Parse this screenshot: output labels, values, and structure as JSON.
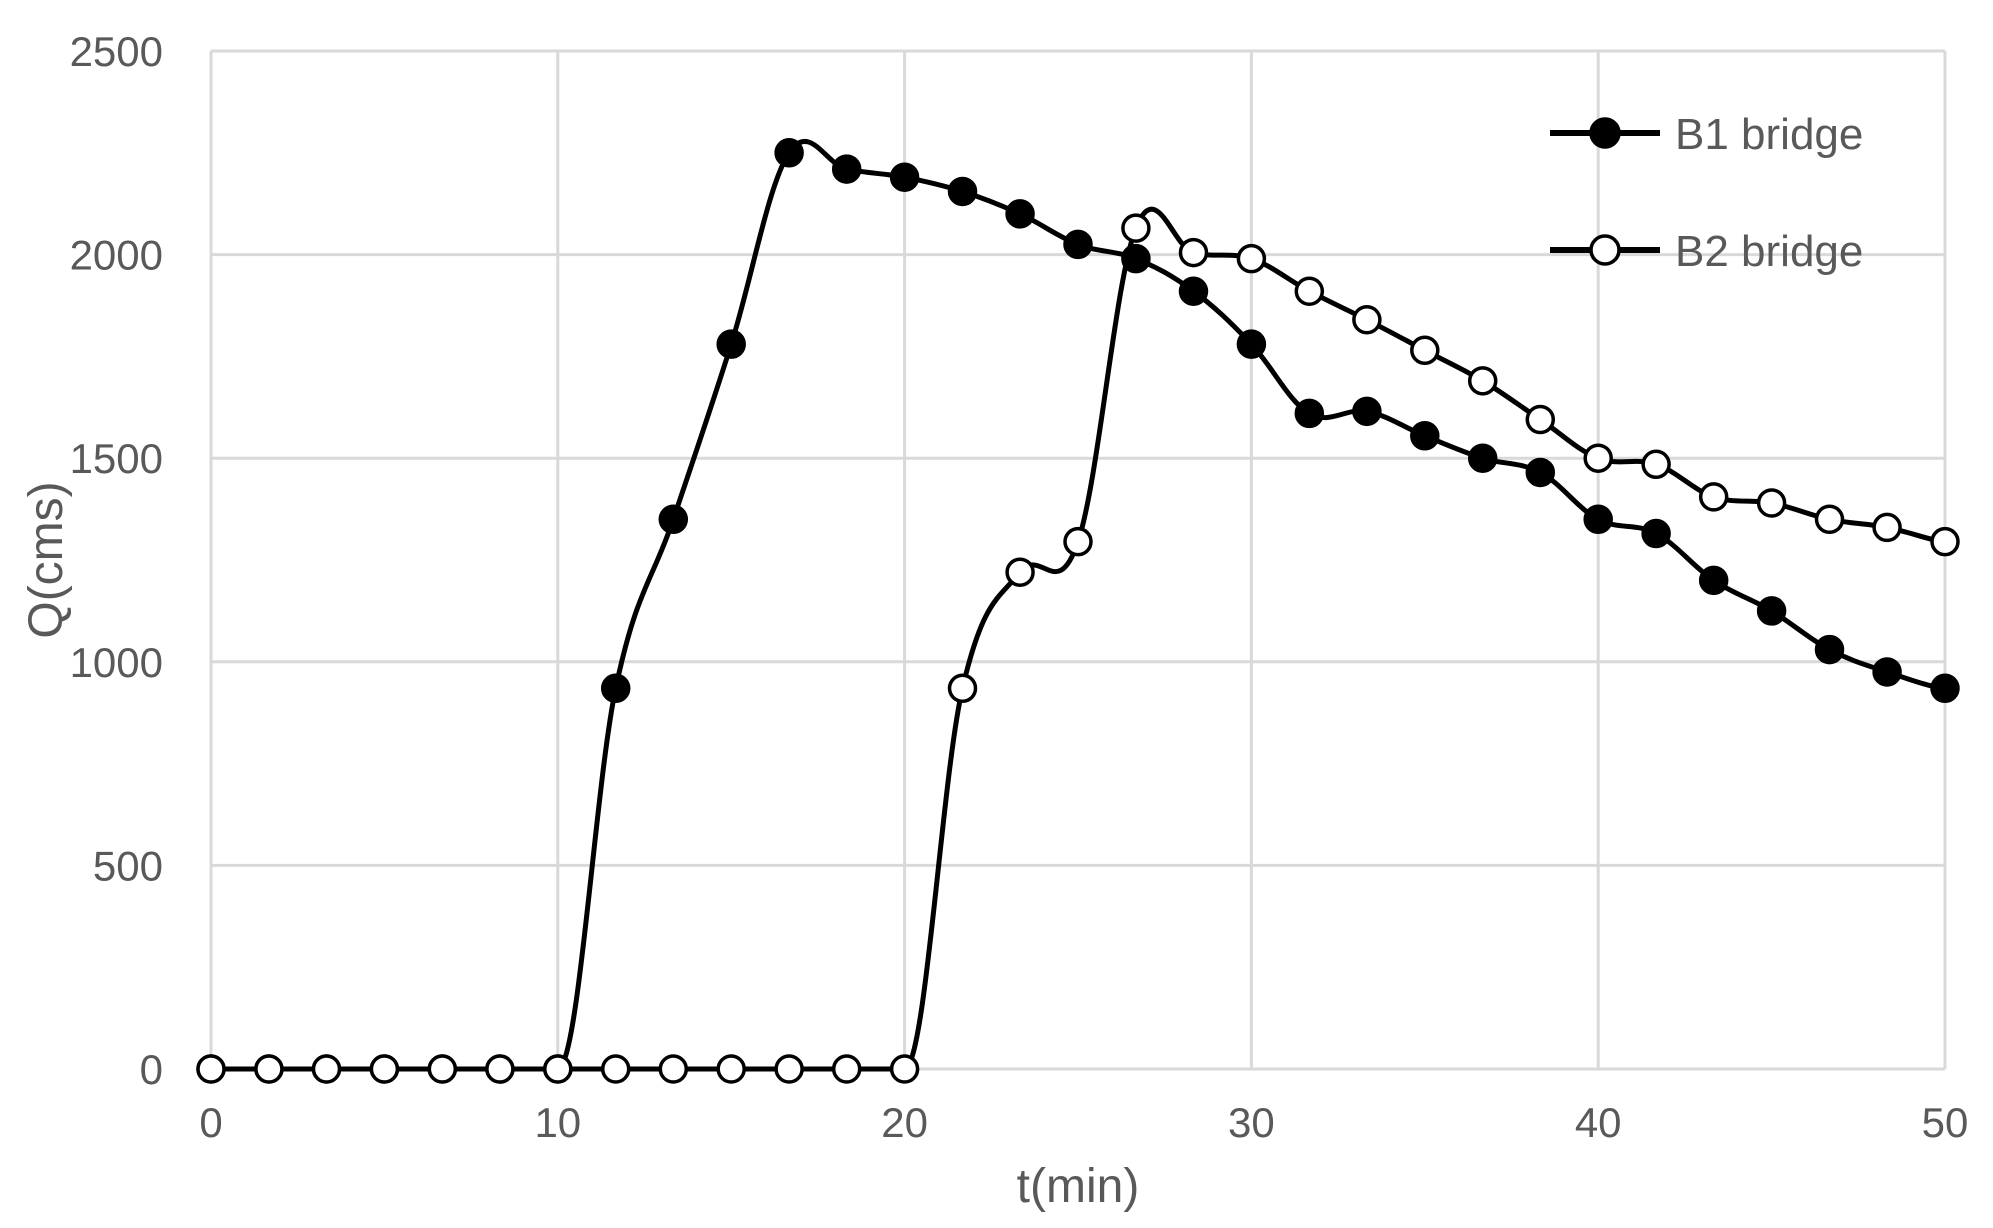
{
  "chart_data": {
    "type": "line",
    "xlabel": "t(min)",
    "ylabel": "Q(cms)",
    "xlim": [
      0,
      50
    ],
    "ylim": [
      0,
      2500
    ],
    "xticks": [
      0,
      10,
      20,
      30,
      40,
      50
    ],
    "yticks": [
      0,
      500,
      1000,
      1500,
      2000,
      2500
    ],
    "grid": true,
    "legend_position": "top-right",
    "series": [
      {
        "name": "B1 bridge",
        "marker": "filled-circle",
        "color": "#000000",
        "x": [
          0,
          1.67,
          3.33,
          5,
          6.67,
          8.33,
          10,
          11.67,
          13.33,
          15,
          16.67,
          18.33,
          20,
          21.67,
          23.33,
          25,
          26.67,
          28.33,
          30,
          31.67,
          33.33,
          35,
          36.67,
          38.33,
          40,
          41.67,
          43.33,
          45,
          46.67,
          48.33,
          50
        ],
        "y": [
          0,
          0,
          0,
          0,
          0,
          0,
          0,
          935,
          1350,
          1780,
          2250,
          2210,
          2190,
          2155,
          2100,
          2025,
          1990,
          1910,
          1780,
          1610,
          1615,
          1555,
          1500,
          1465,
          1350,
          1315,
          1200,
          1125,
          1030,
          975,
          935
        ]
      },
      {
        "name": "B2 bridge",
        "marker": "open-circle",
        "color": "#000000",
        "x": [
          0,
          1.67,
          3.33,
          5,
          6.67,
          8.33,
          10,
          11.67,
          13.33,
          15,
          16.67,
          18.33,
          20,
          21.67,
          23.33,
          25,
          26.67,
          28.33,
          30,
          31.67,
          33.33,
          35,
          36.67,
          38.33,
          40,
          41.67,
          43.33,
          45,
          46.67,
          48.33,
          50
        ],
        "y": [
          0,
          0,
          0,
          0,
          0,
          0,
          0,
          0,
          0,
          0,
          0,
          0,
          0,
          935,
          1220,
          1295,
          2065,
          2005,
          1990,
          1910,
          1840,
          1765,
          1690,
          1595,
          1500,
          1485,
          1405,
          1390,
          1350,
          1330,
          1295
        ]
      }
    ]
  }
}
